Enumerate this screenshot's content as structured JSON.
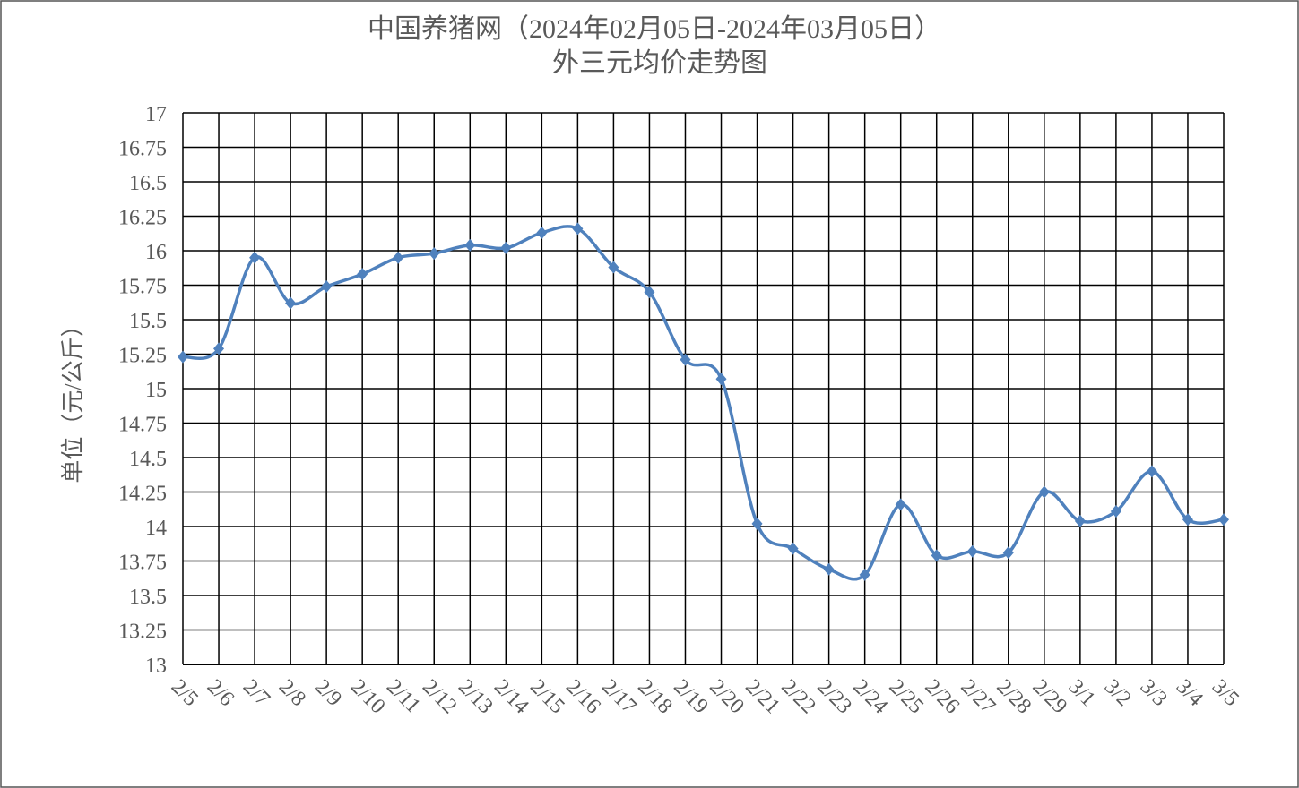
{
  "chart_data": {
    "type": "line",
    "title": "中国养猪网（2024年02月05日-2024年03月05日）",
    "subtitle": "外三元均价走势图",
    "y_label": "单位（元/公斤）",
    "categories": [
      "2/5",
      "2/6",
      "2/7",
      "2/8",
      "2/9",
      "2/10",
      "2/11",
      "2/12",
      "2/13",
      "2/14",
      "2/15",
      "2/16",
      "2/17",
      "2/18",
      "2/19",
      "2/20",
      "2/21",
      "2/22",
      "2/23",
      "2/24",
      "2/25",
      "2/26",
      "2/27",
      "2/28",
      "2/29",
      "3/1",
      "3/2",
      "3/3",
      "3/4",
      "3/5"
    ],
    "values": [
      15.23,
      15.29,
      15.95,
      15.62,
      15.74,
      15.83,
      15.95,
      15.98,
      16.04,
      16.02,
      16.13,
      16.16,
      15.88,
      15.7,
      15.21,
      15.07,
      14.02,
      13.84,
      13.69,
      13.65,
      14.16,
      13.79,
      13.82,
      13.81,
      14.25,
      14.04,
      14.11,
      14.4,
      14.05,
      14.05
    ],
    "color": "#4f81bd",
    "ylim": [
      13,
      17
    ],
    "yticks": [
      13,
      13.25,
      13.5,
      13.75,
      14,
      14.25,
      14.5,
      14.75,
      15,
      15.25,
      15.5,
      15.75,
      16,
      16.25,
      16.5,
      16.75,
      17
    ],
    "grid": true,
    "smooth": true
  }
}
